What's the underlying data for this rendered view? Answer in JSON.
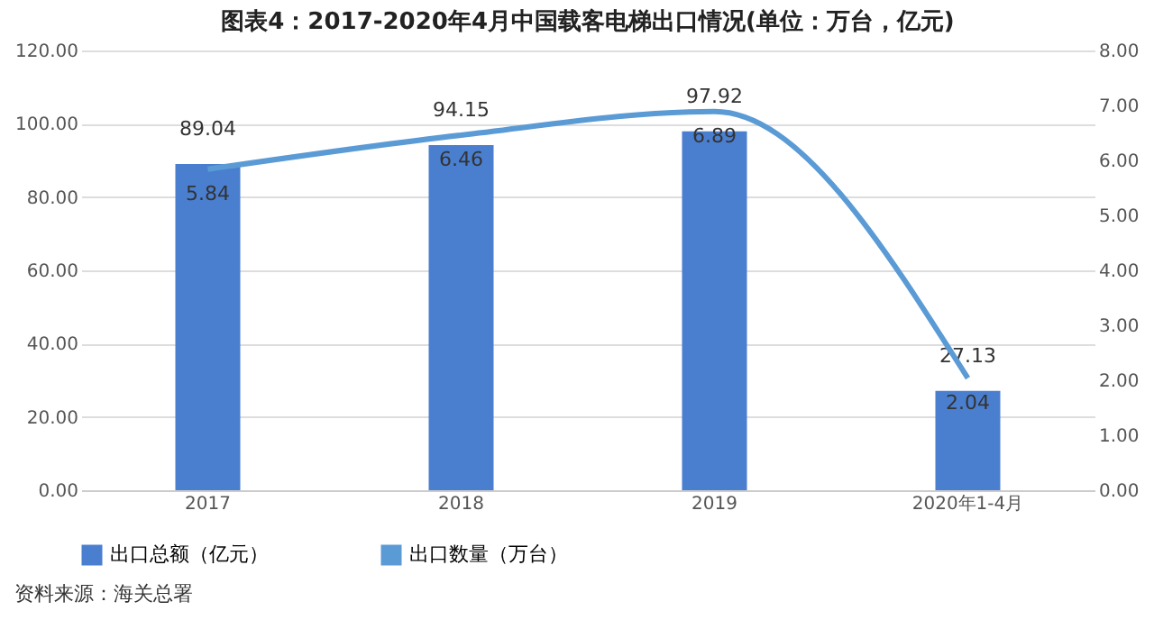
{
  "chart_data": {
    "type": "bar",
    "title": "图表4：2017-2020年4月中国载客电梯出口情况(单位：万台，亿元)",
    "categories": [
      "2017",
      "2018",
      "2019",
      "2020年1-4月"
    ],
    "series": [
      {
        "name": "出口总额（亿元）",
        "color": "#4a7fd0",
        "values": [
          89.04,
          94.15,
          97.92,
          27.13
        ]
      },
      {
        "name": "出口数量（万台）",
        "type": "line",
        "axis": "y2",
        "color": "#5b9bd5",
        "values": [
          5.84,
          6.46,
          6.89,
          2.04
        ]
      }
    ],
    "ylim": [
      0,
      120
    ],
    "yticks": [
      {
        "value": 0,
        "label": "0.00"
      },
      {
        "value": 20,
        "label": "20.00"
      },
      {
        "value": 40,
        "label": "40.00"
      },
      {
        "value": 60,
        "label": "60.00"
      },
      {
        "value": 80,
        "label": "80.00"
      },
      {
        "value": 100,
        "label": "100.00"
      },
      {
        "value": 120,
        "label": "120.00"
      }
    ],
    "y2lim": [
      0,
      8
    ],
    "y2ticks": [
      {
        "value": 0,
        "label": "0.00"
      },
      {
        "value": 1,
        "label": "1.00"
      },
      {
        "value": 2,
        "label": "2.00"
      },
      {
        "value": 3,
        "label": "3.00"
      },
      {
        "value": 4,
        "label": "4.00"
      },
      {
        "value": 5,
        "label": "5.00"
      },
      {
        "value": 6,
        "label": "6.00"
      },
      {
        "value": 7,
        "label": "7.00"
      },
      {
        "value": 8,
        "label": "8.00"
      }
    ],
    "grid": "y",
    "legend": "bottom",
    "data_labels": true,
    "annotations": [
      "资料来源：海关总署"
    ]
  }
}
